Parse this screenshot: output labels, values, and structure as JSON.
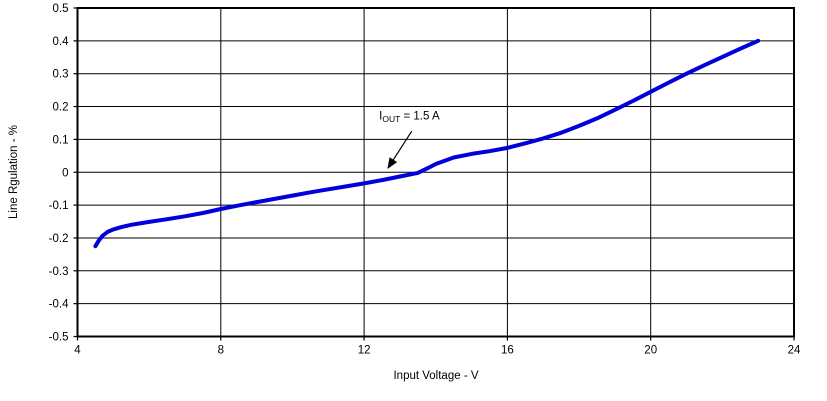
{
  "chart_data": {
    "type": "line",
    "title": "",
    "xlabel": "Input Voltage - V",
    "ylabel": "Line Rgulation - %",
    "xlim": [
      4,
      24
    ],
    "ylim": [
      -0.5,
      0.5
    ],
    "x_ticks": [
      4,
      8,
      12,
      16,
      20,
      24
    ],
    "x_tick_labels": [
      "4",
      "8",
      "12",
      "16",
      "20",
      "24"
    ],
    "y_ticks": [
      -0.5,
      -0.4,
      -0.3,
      -0.2,
      -0.1,
      0,
      0.1,
      0.2,
      0.3,
      0.4,
      0.5
    ],
    "y_tick_labels": [
      "-0.5",
      "-0.4",
      "-0.3",
      "-0.2",
      "-0.1",
      "0",
      "0.1",
      "0.2",
      "0.3",
      "0.4",
      "0.5"
    ],
    "grid": true,
    "legend": "none",
    "colors": {
      "line": "#0000dd",
      "grid": "#000000",
      "text": "#000000",
      "background": "#ffffff"
    },
    "series": [
      {
        "name": "IOUT = 1.5 A",
        "color": "#0000dd",
        "points": [
          [
            4.5,
            -0.225
          ],
          [
            4.6,
            -0.207
          ],
          [
            4.7,
            -0.193
          ],
          [
            4.85,
            -0.181
          ],
          [
            5,
            -0.174
          ],
          [
            5.25,
            -0.166
          ],
          [
            5.5,
            -0.16
          ],
          [
            6,
            -0.151
          ],
          [
            6.5,
            -0.143
          ],
          [
            7,
            -0.134
          ],
          [
            7.5,
            -0.124
          ],
          [
            8,
            -0.112
          ],
          [
            8.5,
            -0.101
          ],
          [
            9,
            -0.091
          ],
          [
            9.5,
            -0.081
          ],
          [
            10,
            -0.071
          ],
          [
            10.5,
            -0.061
          ],
          [
            11,
            -0.052
          ],
          [
            11.5,
            -0.043
          ],
          [
            12,
            -0.034
          ],
          [
            12.5,
            -0.024
          ],
          [
            13,
            -0.013
          ],
          [
            13.5,
            -0.002
          ],
          [
            13.75,
            0.011
          ],
          [
            14,
            0.025
          ],
          [
            14.5,
            0.045
          ],
          [
            15,
            0.056
          ],
          [
            15.5,
            0.064
          ],
          [
            16,
            0.074
          ],
          [
            16.5,
            0.088
          ],
          [
            17,
            0.103
          ],
          [
            17.5,
            0.12
          ],
          [
            18,
            0.141
          ],
          [
            18.5,
            0.164
          ],
          [
            19,
            0.19
          ],
          [
            19.5,
            0.217
          ],
          [
            20,
            0.245
          ],
          [
            20.5,
            0.273
          ],
          [
            21,
            0.3
          ],
          [
            21.5,
            0.326
          ],
          [
            22,
            0.351
          ],
          [
            22.5,
            0.376
          ],
          [
            23,
            0.4
          ]
        ]
      }
    ],
    "annotation": {
      "pre": "I",
      "sub": "OUT",
      "post": " = 1.5 A",
      "text_at": [
        12.42,
        0.16
      ],
      "arrow_from": [
        13.33,
        0.125
      ],
      "arrow_to": [
        12.65,
        0.01
      ]
    }
  }
}
